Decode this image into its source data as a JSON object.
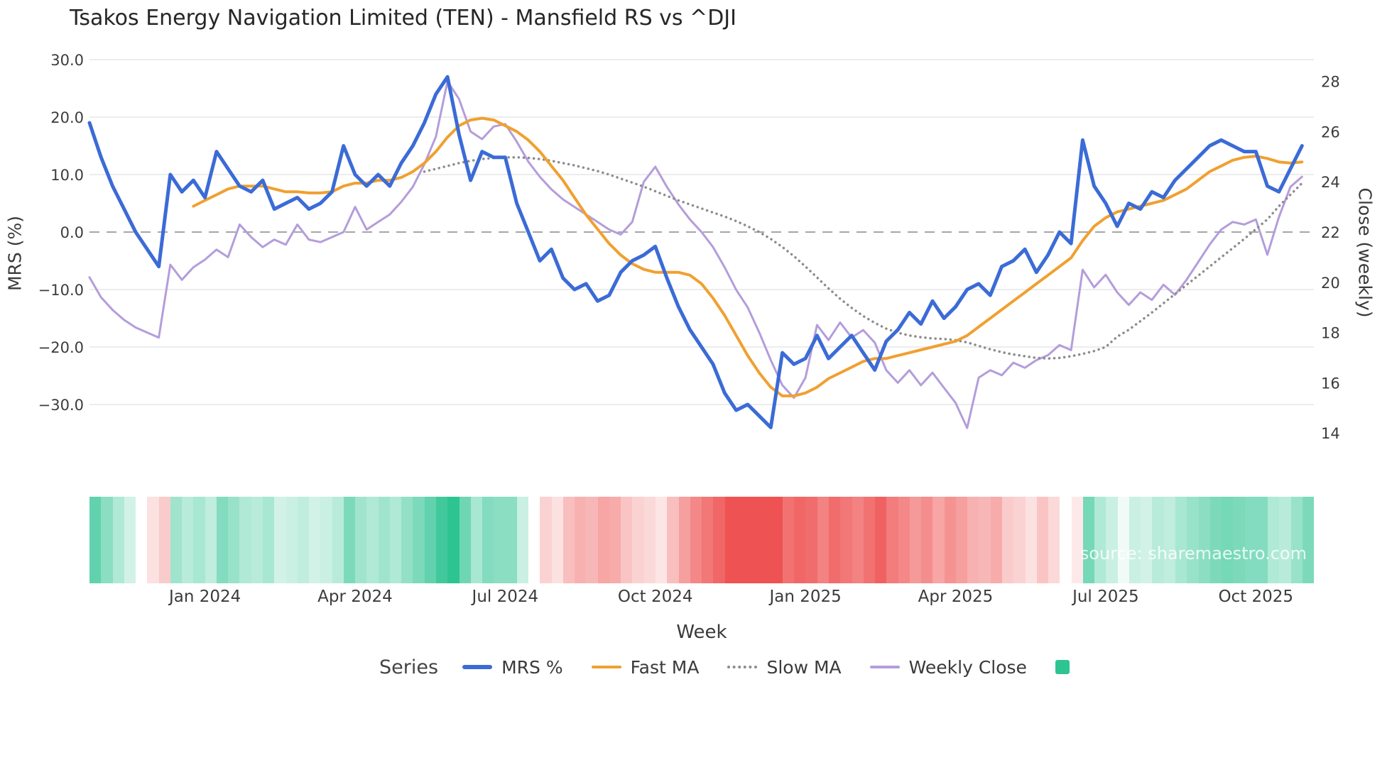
{
  "watermark": "source: sharemaestro.com",
  "legend": {
    "label": "Series",
    "items": [
      {
        "name": "MRS %",
        "slug": "mrs",
        "style": "solid",
        "color": "#3b6bd6",
        "thickness": 6
      },
      {
        "name": "Fast MA",
        "slug": "fast-ma",
        "style": "solid",
        "color": "#f0a030",
        "thickness": 4
      },
      {
        "name": "Slow MA",
        "slug": "slow-ma",
        "style": "dotted",
        "color": "#8c8c8c"
      },
      {
        "name": "Weekly Close",
        "slug": "weekly-close",
        "style": "solid",
        "color": "#b49ddb",
        "thickness": 4
      },
      {
        "name": "",
        "slug": "heatmap",
        "style": "swatch",
        "color": "#2ec492"
      }
    ]
  },
  "chart_data": {
    "type": "line",
    "title": "Tsakos Energy Navigation Limited (TEN) - Mansfield RS vs ^DJI",
    "xlabel": "Week",
    "ylabel_left": "MRS (%)",
    "ylabel_right": "Close (weekly)",
    "left_ylim": [
      -36,
      31
    ],
    "right_ylim": [
      13.1,
      28.6
    ],
    "grid": true,
    "colors": {
      "grid": "#ececec",
      "zero_line": "#a6a6a6"
    },
    "left_axis": {
      "ticks": [
        30,
        20,
        10,
        0,
        -10,
        -20,
        -30
      ],
      "labels": [
        "30.0",
        "20.0",
        "10.0",
        "0.0",
        "−10.0",
        "−20.0",
        "−30.0"
      ]
    },
    "right_axis": {
      "ticks": [
        28,
        26,
        24,
        22,
        20,
        18,
        16,
        14
      ],
      "labels": [
        "28",
        "26",
        "24",
        "22",
        "20",
        "18",
        "16",
        "14"
      ]
    },
    "weeks_total": 106,
    "x_ticks": [
      {
        "label": "Jan 2024",
        "week": 10
      },
      {
        "label": "Apr 2024",
        "week": 23
      },
      {
        "label": "Jul 2024",
        "week": 36
      },
      {
        "label": "Oct 2024",
        "week": 49
      },
      {
        "label": "Jan 2025",
        "week": 62
      },
      {
        "label": "Apr 2025",
        "week": 75
      },
      {
        "label": "Jul 2025",
        "week": 88
      },
      {
        "label": "Oct 2025",
        "week": 101
      }
    ],
    "series": [
      {
        "name": "MRS %",
        "id": "mrs",
        "axis": "left",
        "color": "#3b6bd6",
        "width": 5,
        "dash": null,
        "start_week": 0,
        "values": [
          19,
          13,
          8,
          4,
          0,
          -3,
          -6,
          10,
          7,
          9,
          6,
          14,
          11,
          8,
          7,
          9,
          4,
          5,
          6,
          4,
          5,
          7,
          15,
          10,
          8,
          10,
          8,
          12,
          15,
          19,
          24,
          27,
          17,
          9,
          14,
          13,
          13,
          5,
          0,
          -5,
          -3,
          -8,
          -10,
          -9,
          -12,
          -11,
          -7,
          -5,
          -4,
          -2.5,
          -8,
          -13,
          -17,
          -20,
          -23,
          -28,
          -31,
          -30,
          -32,
          -34,
          -21,
          -23,
          -22,
          -18,
          -22,
          -20,
          -18,
          -21,
          -24,
          -19,
          -17,
          -14,
          -16,
          -12,
          -15,
          -13,
          -10,
          -9,
          -11,
          -6,
          -5,
          -3,
          -7,
          -4,
          0,
          -2,
          16,
          8,
          5,
          1,
          5,
          4,
          7,
          6,
          9,
          11,
          13,
          15,
          16,
          15,
          14,
          14,
          8,
          7,
          11,
          15
        ]
      },
      {
        "name": "Fast MA",
        "id": "fast-ma",
        "axis": "left",
        "color": "#f0a030",
        "width": 4,
        "dash": null,
        "start_week": 9,
        "values": [
          4.5,
          5.5,
          6.5,
          7.5,
          8,
          8,
          8,
          7.5,
          7,
          7,
          6.8,
          6.8,
          7,
          8,
          8.5,
          8.5,
          9,
          9,
          9.5,
          10.5,
          12,
          14,
          16.5,
          18.5,
          19.5,
          19.8,
          19.5,
          18.5,
          17.5,
          16,
          14,
          11.5,
          9,
          6,
          3,
          0.5,
          -2,
          -4,
          -5.5,
          -6.5,
          -7,
          -7,
          -7,
          -7.5,
          -9,
          -11.5,
          -14.5,
          -18,
          -21.5,
          -24.5,
          -27,
          -28.5,
          -28.5,
          -28,
          -27,
          -25.5,
          -24.5,
          -23.5,
          -22.5,
          -22,
          -22,
          -21.5,
          -21,
          -20.5,
          -20,
          -19.5,
          -19,
          -18,
          -16.5,
          -15,
          -13.5,
          -12,
          -10.5,
          -9,
          -7.5,
          -6,
          -4.5,
          -1.5,
          1,
          2.5,
          3.5,
          4,
          4.5,
          5,
          5.5,
          6.5,
          7.5,
          9,
          10.5,
          11.5,
          12.5,
          13,
          13.2,
          12.8,
          12.2,
          12,
          12.2
        ]
      },
      {
        "name": "Slow MA",
        "id": "slow-ma",
        "axis": "left",
        "color": "#8c8c8c",
        "width": 3.5,
        "dash": "0.1 7",
        "start_week": 29,
        "values": [
          10.5,
          11,
          11.5,
          12,
          12.4,
          12.7,
          12.9,
          13,
          13,
          12.9,
          12.7,
          12.4,
          12,
          11.6,
          11.1,
          10.6,
          10,
          9.3,
          8.6,
          7.9,
          7.1,
          6.3,
          5.5,
          4.8,
          4.1,
          3.4,
          2.7,
          1.9,
          1,
          0,
          -1.2,
          -2.6,
          -4.2,
          -6,
          -7.9,
          -9.8,
          -11.6,
          -13.2,
          -14.6,
          -15.8,
          -16.8,
          -17.5,
          -18,
          -18.3,
          -18.5,
          -18.6,
          -18.8,
          -19.2,
          -19.8,
          -20.4,
          -20.9,
          -21.3,
          -21.6,
          -21.9,
          -22,
          -21.9,
          -21.6,
          -21.2,
          -20.7,
          -20,
          -18.2,
          -17,
          -15.5,
          -14,
          -12.4,
          -10.8,
          -9.2,
          -7.6,
          -6,
          -4.4,
          -2.8,
          -1.2,
          0.5,
          2.2,
          4.5,
          6.5,
          8.5
        ]
      },
      {
        "name": "Weekly Close",
        "id": "weekly-close",
        "axis": "right",
        "color": "#b49ddb",
        "width": 3,
        "dash": null,
        "start_week": 0,
        "values": [
          20.2,
          19.4,
          18.9,
          18.5,
          18.2,
          18,
          17.8,
          20.7,
          20.1,
          20.6,
          20.9,
          21.3,
          21,
          22.3,
          21.8,
          21.4,
          21.7,
          21.5,
          22.3,
          21.7,
          21.6,
          21.8,
          22,
          23,
          22.1,
          22.4,
          22.7,
          23.2,
          23.8,
          24.7,
          25.8,
          28,
          27.3,
          26,
          25.7,
          26.2,
          26.3,
          25.6,
          24.8,
          24.2,
          23.7,
          23.3,
          23,
          22.7,
          22.4,
          22.1,
          21.9,
          22.4,
          24,
          24.6,
          23.8,
          23.1,
          22.5,
          22,
          21.4,
          20.6,
          19.7,
          19,
          18,
          16.9,
          15.9,
          15.4,
          16.2,
          18.3,
          17.7,
          18.4,
          17.8,
          18.1,
          17.6,
          16.5,
          16,
          16.5,
          15.9,
          16.4,
          15.8,
          15.2,
          14.2,
          16.2,
          16.5,
          16.3,
          16.8,
          16.6,
          16.9,
          17.1,
          17.5,
          17.3,
          20.5,
          19.8,
          20.3,
          19.6,
          19.1,
          19.6,
          19.3,
          19.9,
          19.5,
          20.1,
          20.8,
          21.5,
          22.1,
          22.4,
          22.3,
          22.5,
          21.1,
          22.6,
          23.8,
          24.2
        ]
      }
    ],
    "heatmap": {
      "derive_from": "MRS %",
      "max_abs": 27,
      "positive_color": "#2ec492",
      "negative_color": "#ef5252"
    }
  }
}
